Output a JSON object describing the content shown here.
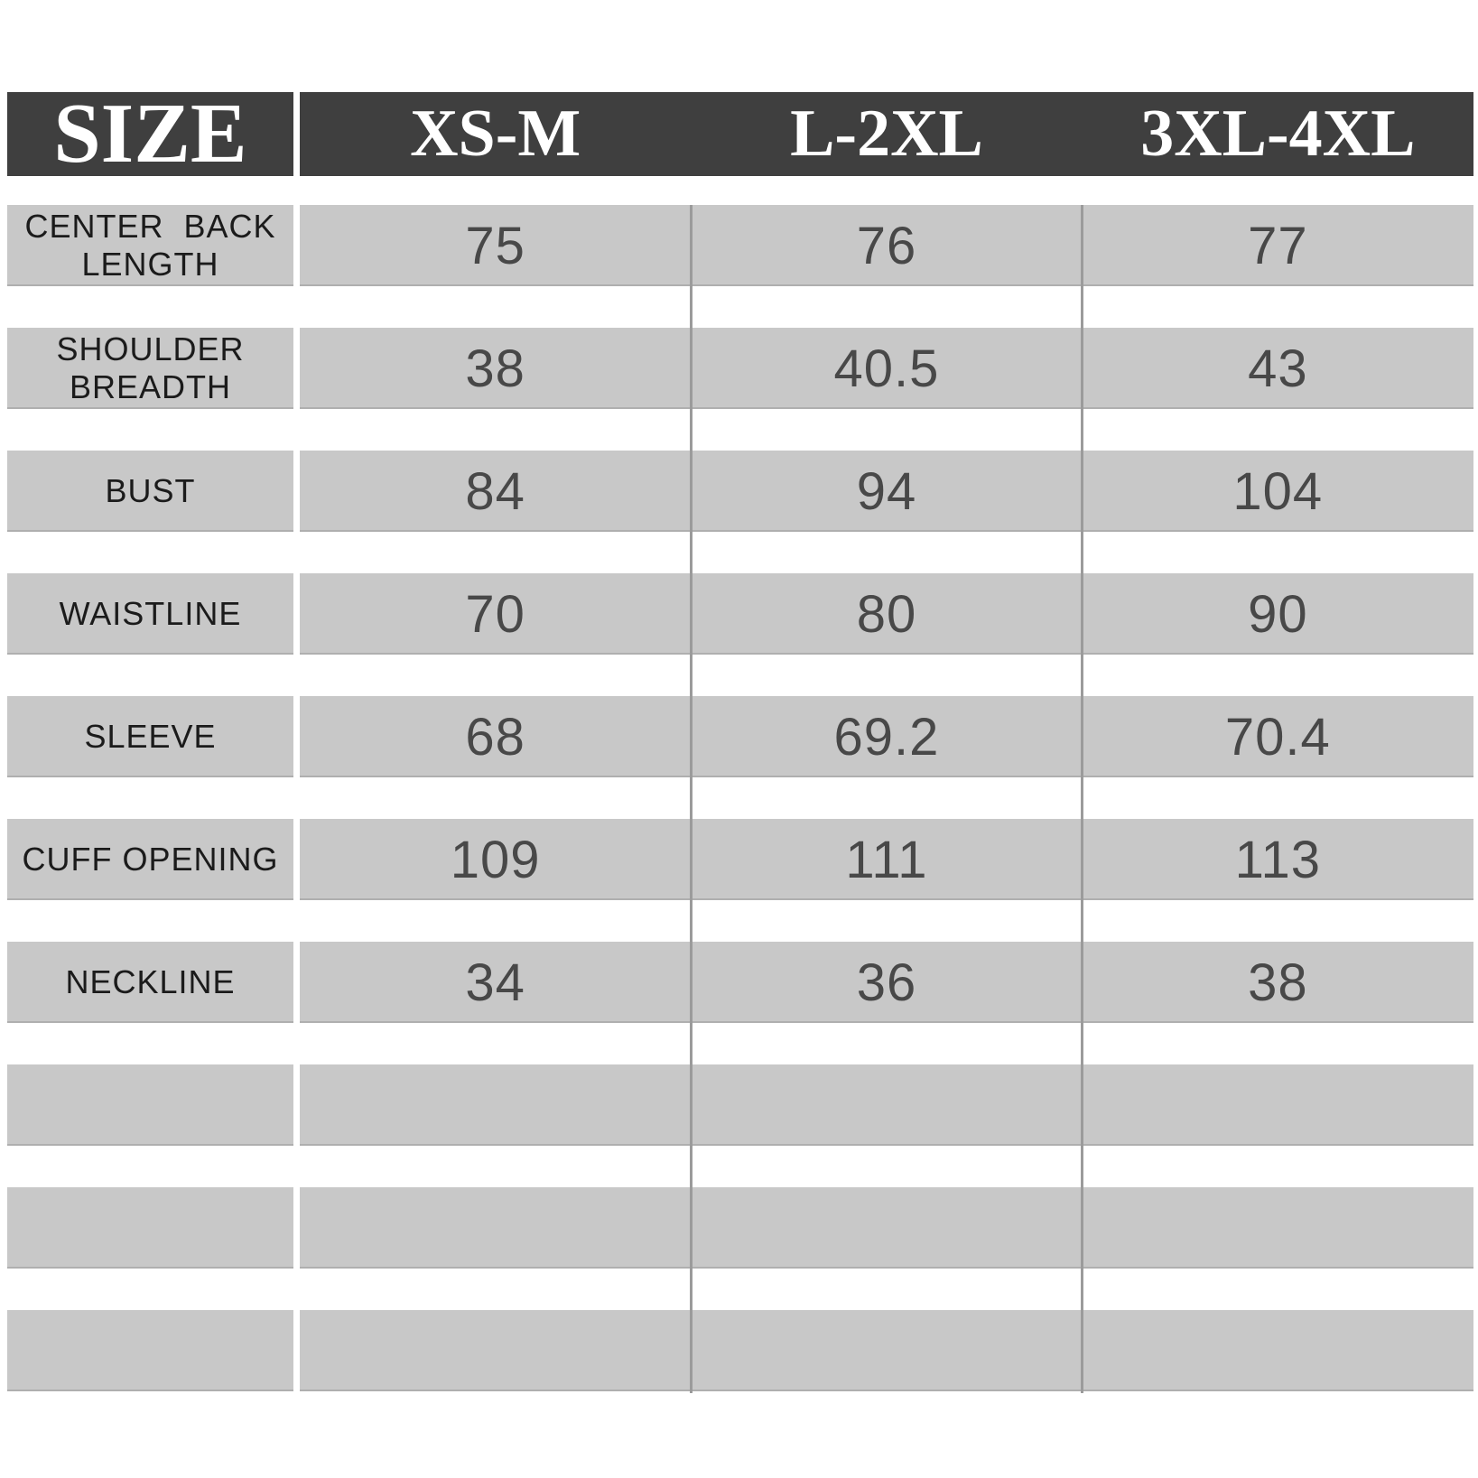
{
  "colors": {
    "header_bg": "#3f3f3f",
    "header_text": "#ffffff",
    "row_bg": "#c8c8c8",
    "label_text": "#1b1b1b",
    "value_text": "#484848",
    "divider": "#9b9b9b",
    "page_bg": "#ffffff"
  },
  "chart_data": {
    "type": "table",
    "title": "SIZE",
    "columns": [
      "XS-M",
      "L-2XL",
      "3XL-4XL"
    ],
    "rows": [
      {
        "label": "CENTER  BACK\nLENGTH",
        "values": [
          "75",
          "76",
          "77"
        ]
      },
      {
        "label": "SHOULDER\nBREADTH",
        "values": [
          "38",
          "40.5",
          "43"
        ]
      },
      {
        "label": "BUST",
        "values": [
          "84",
          "94",
          "104"
        ]
      },
      {
        "label": "WAISTLINE",
        "values": [
          "70",
          "80",
          "90"
        ]
      },
      {
        "label": "SLEEVE",
        "values": [
          "68",
          "69.2",
          "70.4"
        ]
      },
      {
        "label": "CUFF OPENING",
        "values": [
          "109",
          "111",
          "113"
        ]
      },
      {
        "label": "NECKLINE",
        "values": [
          "34",
          "36",
          "38"
        ]
      },
      {
        "label": "",
        "values": [
          "",
          "",
          ""
        ]
      },
      {
        "label": "",
        "values": [
          "",
          "",
          ""
        ]
      },
      {
        "label": "",
        "values": [
          "",
          "",
          ""
        ]
      }
    ]
  }
}
